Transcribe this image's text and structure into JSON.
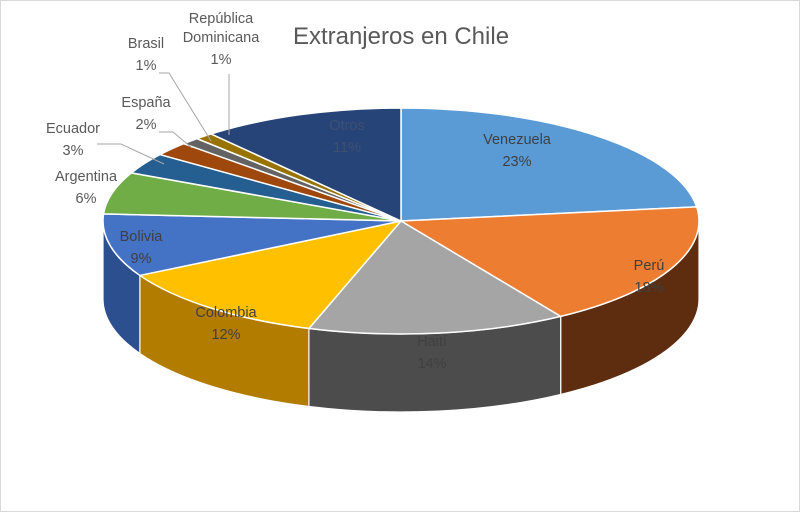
{
  "chart_data": {
    "type": "pie",
    "style": "3d-pie",
    "title": "Extranjeros en Chile",
    "legend": "none",
    "label_format": "category-name and percentage",
    "slices": [
      {
        "name": "Venezuela",
        "label": "23%",
        "value": 23,
        "color": "#5b9bd5",
        "side_color": "#2f5f93"
      },
      {
        "name": "Perú",
        "label": "18%",
        "value": 18,
        "color": "#ed7d31",
        "side_color": "#5e2c0f"
      },
      {
        "name": "Haití",
        "label": "14%",
        "value": 14,
        "color": "#a5a5a5",
        "side_color": "#4c4c4c"
      },
      {
        "name": "Colombia",
        "label": "12%",
        "value": 12,
        "color": "#ffc000",
        "side_color": "#b27c00"
      },
      {
        "name": "Bolivia",
        "label": "9%",
        "value": 9,
        "color": "#4472c4",
        "side_color": "#2c4f8f"
      },
      {
        "name": "Argentina",
        "label": "6%",
        "value": 6,
        "color": "#70ad47",
        "side_color": "#4a7a2e"
      },
      {
        "name": "Ecuador",
        "label": "3%",
        "value": 3,
        "color": "#255e91",
        "side_color": "#173e61"
      },
      {
        "name": "España",
        "label": "2%",
        "value": 2,
        "color": "#9e480e",
        "side_color": "#6a2f08"
      },
      {
        "name": "Brasil",
        "label": "1%",
        "value": 1,
        "color": "#636363",
        "side_color": "#404040"
      },
      {
        "name": "República Dominicana",
        "label": "1%",
        "value": 1,
        "color": "#997300",
        "side_color": "#6b5000"
      },
      {
        "name": "Otros",
        "label": "11%",
        "value": 11,
        "color": "#264478",
        "side_color": "#18305a"
      }
    ]
  }
}
